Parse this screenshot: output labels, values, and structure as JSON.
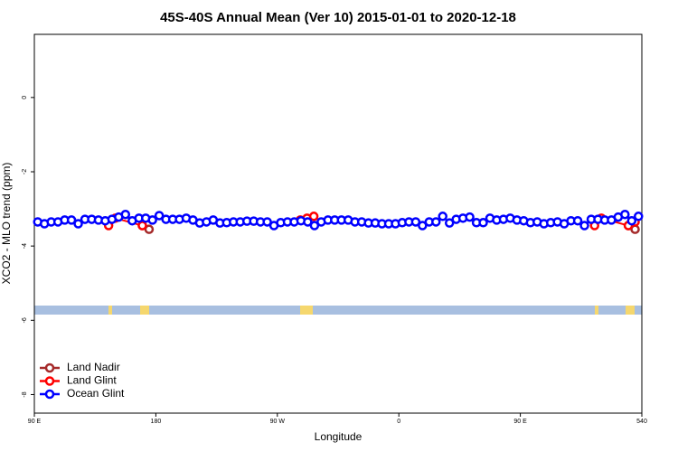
{
  "chart_data": {
    "type": "line",
    "title": "45S-40S Annual Mean (Ver 10)   2015-01-01 to 2020-12-18",
    "x_label": "Longitude",
    "y_label": "XCO2 - MLO trend (ppm)",
    "xlim": [
      90,
      540
    ],
    "ylim": [
      -8.5,
      1.7
    ],
    "xticks": [
      {
        "value": 90,
        "label": "90 E"
      },
      180,
      {
        "value": 270,
        "label": "90 W"
      },
      {
        "value": 360,
        "label": "0"
      },
      {
        "value": 450,
        "label": "90 E"
      },
      540
    ],
    "yticks": [
      -8,
      -6,
      -4,
      -2,
      0
    ],
    "legend": "bottom-left",
    "series": [
      {
        "name": "Land Nadir",
        "color": "#a52a2a",
        "x": [
          170,
          175,
          350,
          530,
          535
        ],
        "values": [
          -3.45,
          -3.55,
          null,
          -3.45,
          -3.55
        ]
      },
      {
        "name": "Land Glint",
        "color": "#ff0000",
        "x": [
          145,
          150,
          170,
          230,
          287,
          292,
          297,
          400,
          505,
          510,
          530,
          535
        ],
        "values": [
          -3.45,
          -3.25,
          -3.45,
          null,
          -3.3,
          -3.25,
          -3.2,
          null,
          -3.45,
          -3.25,
          -3.45,
          -3.35
        ]
      },
      {
        "name": "Ocean Glint",
        "color": "#0000ff",
        "x": [
          92.5,
          97.5,
          102.5,
          107.5,
          112.5,
          117.5,
          122.5,
          127.5,
          132.5,
          137.5,
          142.5,
          147.5,
          152.5,
          157.5,
          162.5,
          167.5,
          172.5,
          177.5,
          182.5,
          187.5,
          192.5,
          197.5,
          202.5,
          207.5,
          212.5,
          217.5,
          222.5,
          227.5,
          232.5,
          237.5,
          242.5,
          247.5,
          252.5,
          257.5,
          262.5,
          267.5,
          272.5,
          277.5,
          282.5,
          287.5,
          292.5,
          297.5,
          302.5,
          307.5,
          312.5,
          317.5,
          322.5,
          327.5,
          332.5,
          337.5,
          342.5,
          347.5,
          352.5,
          357.5,
          362.5,
          367.5,
          372.5,
          377.5,
          382.5,
          387.5,
          392.5,
          397.5,
          402.5,
          407.5,
          412.5,
          417.5,
          422.5,
          427.5,
          432.5,
          437.5,
          442.5,
          447.5,
          452.5,
          457.5,
          462.5,
          467.5,
          472.5,
          477.5,
          482.5,
          487.5,
          492.5,
          497.5,
          502.5,
          507.5,
          512.5,
          517.5,
          522.5,
          527.5,
          532.5,
          537.5
        ],
        "values": [
          -3.35,
          -3.4,
          -3.35,
          -3.35,
          -3.3,
          -3.3,
          -3.4,
          -3.28,
          -3.28,
          -3.3,
          -3.32,
          -3.28,
          -3.22,
          -3.15,
          -3.32,
          -3.25,
          -3.25,
          -3.3,
          -3.18,
          -3.28,
          -3.28,
          -3.28,
          -3.25,
          -3.3,
          -3.38,
          -3.35,
          -3.3,
          -3.38,
          -3.37,
          -3.35,
          -3.35,
          -3.33,
          -3.33,
          -3.35,
          -3.35,
          -3.45,
          -3.37,
          -3.35,
          -3.35,
          -3.32,
          -3.35,
          -3.45,
          -3.35,
          -3.3,
          -3.3,
          -3.3,
          -3.3,
          -3.35,
          -3.35,
          -3.38,
          -3.38,
          -3.4,
          -3.4,
          -3.4,
          -3.37,
          -3.35,
          -3.35,
          -3.45,
          -3.35,
          -3.35,
          -3.2,
          -3.38,
          -3.28,
          -3.25,
          -3.22,
          -3.37,
          -3.37,
          -3.25,
          -3.3,
          -3.28,
          -3.25,
          -3.3,
          -3.32,
          -3.37,
          -3.35,
          -3.4,
          -3.37,
          -3.35,
          -3.4,
          -3.32,
          -3.32,
          -3.45,
          -3.28,
          -3.28,
          -3.3,
          -3.3,
          -3.22,
          -3.15,
          -3.32,
          -3.2
        ]
      }
    ]
  }
}
